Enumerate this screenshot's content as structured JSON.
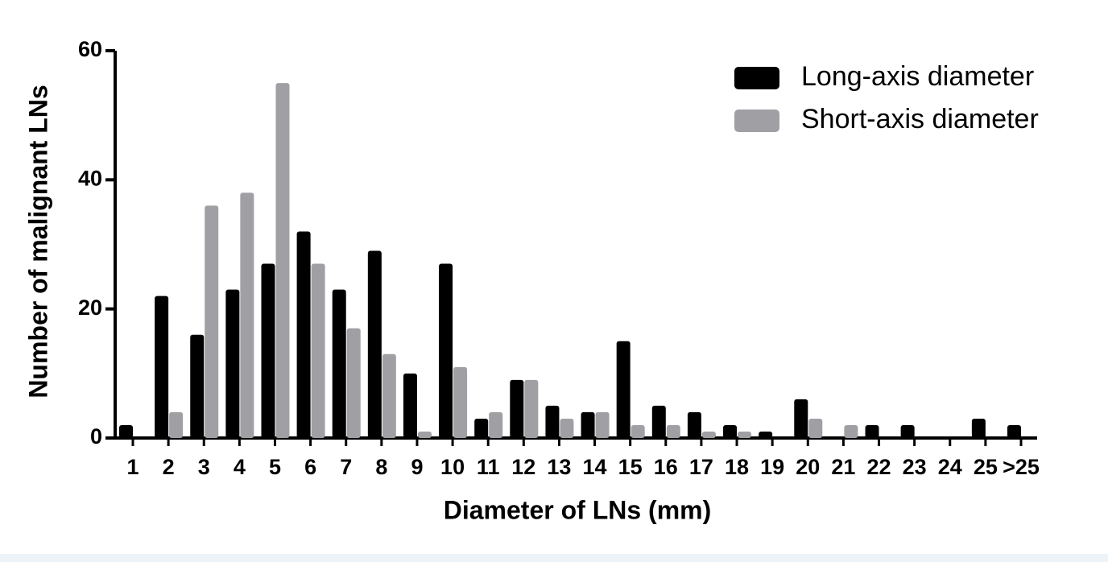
{
  "chart_data": {
    "type": "bar",
    "x_label": "Diameter of LNs (mm)",
    "y_label": "Number of malignant LNs",
    "categories": [
      "1",
      "2",
      "3",
      "4",
      "5",
      "6",
      "7",
      "8",
      "9",
      "10",
      "11",
      "12",
      "13",
      "14",
      "15",
      "16",
      "17",
      "18",
      "19",
      "20",
      "21",
      "22",
      "23",
      "24",
      "25",
      ">25"
    ],
    "series": [
      {
        "name": "Long-axis diameter",
        "color": "#000000",
        "values": [
          2,
          22,
          16,
          23,
          27,
          32,
          23,
          29,
          10,
          27,
          3,
          9,
          5,
          4,
          15,
          5,
          4,
          2,
          1,
          6,
          0,
          2,
          2,
          0,
          3,
          2
        ]
      },
      {
        "name": "Short-axis diameter",
        "color": "#a0a0a4",
        "values": [
          0,
          4,
          36,
          38,
          55,
          27,
          17,
          13,
          1,
          11,
          4,
          9,
          3,
          4,
          2,
          2,
          1,
          1,
          0,
          3,
          2,
          0,
          0,
          0,
          0,
          0
        ]
      }
    ],
    "ylim": [
      0,
      60
    ],
    "yticks": [
      0,
      20,
      40,
      60
    ],
    "legend": "top-right"
  }
}
